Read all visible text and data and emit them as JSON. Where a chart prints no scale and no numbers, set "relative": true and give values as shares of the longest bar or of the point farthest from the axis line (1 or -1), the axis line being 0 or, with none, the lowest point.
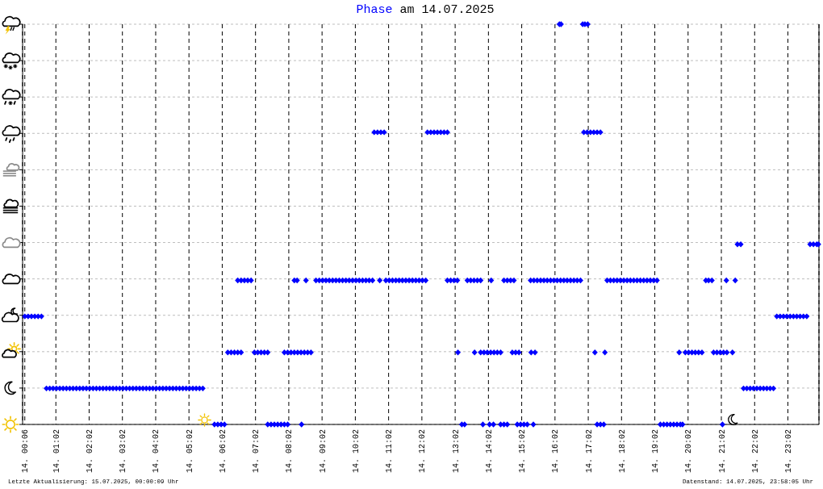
{
  "chart_data": {
    "type": "scatter",
    "title": "Phase am 14.07.2025",
    "annotations": [
      "Letzte Aktualisierung: 15.07.2025, 00:00:09 Uhr",
      "Datenstand: 14.07.2025, 23:58:05 Uhr"
    ],
    "xlim": [
      "2025-07-14T00:02",
      "2025-07-14T23:58"
    ],
    "xticks": [
      {
        "value": "2025-07-14T00:06",
        "label": "14. 00:06"
      },
      {
        "value": "2025-07-14T01:02",
        "label": "14. 01:02"
      },
      {
        "value": "2025-07-14T02:02",
        "label": "14. 02:02"
      },
      {
        "value": "2025-07-14T03:02",
        "label": "14. 03:02"
      },
      {
        "value": "2025-07-14T04:02",
        "label": "14. 04:02"
      },
      {
        "value": "2025-07-14T05:02",
        "label": "14. 05:02"
      },
      {
        "value": "2025-07-14T06:02",
        "label": "14. 06:02"
      },
      {
        "value": "2025-07-14T07:02",
        "label": "14. 07:02"
      },
      {
        "value": "2025-07-14T08:02",
        "label": "14. 08:02"
      },
      {
        "value": "2025-07-14T09:02",
        "label": "14. 09:02"
      },
      {
        "value": "2025-07-14T10:02",
        "label": "14. 10:02"
      },
      {
        "value": "2025-07-14T11:02",
        "label": "14. 11:02"
      },
      {
        "value": "2025-07-14T12:02",
        "label": "14. 12:02"
      },
      {
        "value": "2025-07-14T13:02",
        "label": "14. 13:02"
      },
      {
        "value": "2025-07-14T14:02",
        "label": "14. 14:02"
      },
      {
        "value": "2025-07-14T15:02",
        "label": "14. 15:02"
      },
      {
        "value": "2025-07-14T16:02",
        "label": "14. 16:02"
      },
      {
        "value": "2025-07-14T17:02",
        "label": "14. 17:02"
      },
      {
        "value": "2025-07-14T18:02",
        "label": "14. 18:02"
      },
      {
        "value": "2025-07-14T19:02",
        "label": "14. 19:02"
      },
      {
        "value": "2025-07-14T20:02",
        "label": "14. 20:02"
      },
      {
        "value": "2025-07-14T21:02",
        "label": "14. 21:02"
      },
      {
        "value": "2025-07-14T22:02",
        "label": "14. 22:02"
      },
      {
        "value": "2025-07-14T23:02",
        "label": "14. 23:02"
      }
    ],
    "relative": true,
    "grid": true,
    "marker": "diamond",
    "series": [
      {
        "color": "#0000ff",
        "x": [
          "2025-07-14T00:06",
          "2025-07-14T00:12",
          "2025-07-14T00:18",
          "2025-07-14T00:24",
          "2025-07-14T00:30",
          "2025-07-14T00:36",
          "2025-07-14T00:45",
          "2025-07-14T00:51",
          "2025-07-14T00:57",
          "2025-07-14T01:03",
          "2025-07-14T01:09",
          "2025-07-14T01:15",
          "2025-07-14T01:21",
          "2025-07-14T01:27",
          "2025-07-14T01:33",
          "2025-07-14T01:39",
          "2025-07-14T01:45",
          "2025-07-14T01:51",
          "2025-07-14T01:57",
          "2025-07-14T02:03",
          "2025-07-14T02:09",
          "2025-07-14T02:15",
          "2025-07-14T02:21",
          "2025-07-14T02:27",
          "2025-07-14T02:33",
          "2025-07-14T02:39",
          "2025-07-14T02:45",
          "2025-07-14T02:51",
          "2025-07-14T02:57",
          "2025-07-14T03:03",
          "2025-07-14T03:09",
          "2025-07-14T03:15",
          "2025-07-14T03:21",
          "2025-07-14T03:27",
          "2025-07-14T03:33",
          "2025-07-14T03:39",
          "2025-07-14T03:45",
          "2025-07-14T03:51",
          "2025-07-14T03:57",
          "2025-07-14T04:03",
          "2025-07-14T04:09",
          "2025-07-14T04:15",
          "2025-07-14T04:21",
          "2025-07-14T04:27",
          "2025-07-14T04:33",
          "2025-07-14T04:39",
          "2025-07-14T04:45",
          "2025-07-14T04:51",
          "2025-07-14T04:57",
          "2025-07-14T05:03",
          "2025-07-14T05:09",
          "2025-07-14T05:15",
          "2025-07-14T05:21",
          "2025-07-14T05:27",
          "2025-07-14T05:48",
          "2025-07-14T05:54",
          "2025-07-14T06:00",
          "2025-07-14T06:06",
          "2025-07-14T06:12",
          "2025-07-14T06:18",
          "2025-07-14T06:24",
          "2025-07-14T06:30",
          "2025-07-14T06:36",
          "2025-07-14T06:30",
          "2025-07-14T06:36",
          "2025-07-14T06:42",
          "2025-07-14T06:48",
          "2025-07-14T06:54",
          "2025-07-14T07:00",
          "2025-07-14T07:06",
          "2025-07-14T07:12",
          "2025-07-14T07:18",
          "2025-07-14T07:24",
          "2025-07-14T07:24",
          "2025-07-14T07:30",
          "2025-07-14T07:36",
          "2025-07-14T07:42",
          "2025-07-14T07:48",
          "2025-07-14T07:54",
          "2025-07-14T08:00",
          "2025-07-14T07:54",
          "2025-07-14T08:00",
          "2025-07-14T08:06",
          "2025-07-14T08:12",
          "2025-07-14T08:18",
          "2025-07-14T08:24",
          "2025-07-14T08:30",
          "2025-07-14T08:36",
          "2025-07-14T08:42",
          "2025-07-14T08:12",
          "2025-07-14T08:17",
          "2025-07-14T08:25",
          "2025-07-14T08:33",
          "2025-07-14T08:51",
          "2025-07-14T08:57",
          "2025-07-14T09:03",
          "2025-07-14T09:09",
          "2025-07-14T09:15",
          "2025-07-14T09:21",
          "2025-07-14T09:27",
          "2025-07-14T09:33",
          "2025-07-14T09:39",
          "2025-07-14T09:45",
          "2025-07-14T09:51",
          "2025-07-14T09:57",
          "2025-07-14T10:03",
          "2025-07-14T10:09",
          "2025-07-14T10:15",
          "2025-07-14T10:21",
          "2025-07-14T10:27",
          "2025-07-14T10:33",
          "2025-07-14T10:36",
          "2025-07-14T10:42",
          "2025-07-14T10:48",
          "2025-07-14T10:54",
          "2025-07-14T10:46",
          "2025-07-14T10:57",
          "2025-07-14T11:03",
          "2025-07-14T11:09",
          "2025-07-14T11:15",
          "2025-07-14T11:21",
          "2025-07-14T11:27",
          "2025-07-14T11:33",
          "2025-07-14T11:39",
          "2025-07-14T11:45",
          "2025-07-14T11:51",
          "2025-07-14T11:57",
          "2025-07-14T12:03",
          "2025-07-14T12:09",
          "2025-07-14T12:12",
          "2025-07-14T12:18",
          "2025-07-14T12:24",
          "2025-07-14T12:30",
          "2025-07-14T12:36",
          "2025-07-14T12:42",
          "2025-07-14T12:48",
          "2025-07-14T12:48",
          "2025-07-14T12:54",
          "2025-07-14T13:00",
          "2025-07-14T13:06",
          "2025-07-14T13:07",
          "2025-07-14T13:14",
          "2025-07-14T13:19",
          "2025-07-14T13:24",
          "2025-07-14T13:30",
          "2025-07-14T13:36",
          "2025-07-14T13:42",
          "2025-07-14T13:48",
          "2025-07-14T13:37",
          "2025-07-14T13:48",
          "2025-07-14T13:54",
          "2025-07-14T14:00",
          "2025-07-14T14:06",
          "2025-07-14T14:12",
          "2025-07-14T14:18",
          "2025-07-14T14:24",
          "2025-07-14T13:52",
          "2025-07-14T14:04",
          "2025-07-14T14:11",
          "2025-07-14T14:07",
          "2025-07-14T14:24",
          "2025-07-14T14:30",
          "2025-07-14T14:36",
          "2025-07-14T14:30",
          "2025-07-14T14:36",
          "2025-07-14T14:42",
          "2025-07-14T14:48",
          "2025-07-14T14:45",
          "2025-07-14T14:51",
          "2025-07-14T14:57",
          "2025-07-14T14:54",
          "2025-07-14T15:00",
          "2025-07-14T15:06",
          "2025-07-14T15:12",
          "2025-07-14T15:18",
          "2025-07-14T15:24",
          "2025-07-14T15:30",
          "2025-07-14T15:36",
          "2025-07-14T15:42",
          "2025-07-14T15:48",
          "2025-07-14T15:54",
          "2025-07-14T16:00",
          "2025-07-14T16:06",
          "2025-07-14T16:12",
          "2025-07-14T16:18",
          "2025-07-14T16:24",
          "2025-07-14T16:30",
          "2025-07-14T16:36",
          "2025-07-14T16:42",
          "2025-07-14T16:48",
          "2025-07-14T15:19",
          "2025-07-14T15:26",
          "2025-07-14T15:23",
          "2025-07-14T16:10",
          "2025-07-14T16:13",
          "2025-07-14T16:52",
          "2025-07-14T16:56",
          "2025-07-14T17:01",
          "2025-07-14T16:54",
          "2025-07-14T17:00",
          "2025-07-14T17:06",
          "2025-07-14T17:12",
          "2025-07-14T17:18",
          "2025-07-14T17:24",
          "2025-07-14T17:14",
          "2025-07-14T17:18",
          "2025-07-14T17:24",
          "2025-07-14T17:30",
          "2025-07-14T17:32",
          "2025-07-14T17:36",
          "2025-07-14T17:42",
          "2025-07-14T17:48",
          "2025-07-14T17:54",
          "2025-07-14T18:00",
          "2025-07-14T18:06",
          "2025-07-14T18:12",
          "2025-07-14T18:18",
          "2025-07-14T18:24",
          "2025-07-14T18:30",
          "2025-07-14T18:36",
          "2025-07-14T18:42",
          "2025-07-14T18:48",
          "2025-07-14T18:54",
          "2025-07-14T19:00",
          "2025-07-14T19:06",
          "2025-07-14T19:12",
          "2025-07-14T19:18",
          "2025-07-14T19:24",
          "2025-07-14T19:30",
          "2025-07-14T19:36",
          "2025-07-14T19:42",
          "2025-07-14T19:48",
          "2025-07-14T19:52",
          "2025-07-14T19:46",
          "2025-07-14T19:57",
          "2025-07-14T20:03",
          "2025-07-14T20:09",
          "2025-07-14T20:15",
          "2025-07-14T20:21",
          "2025-07-14T20:27",
          "2025-07-14T20:34",
          "2025-07-14T20:39",
          "2025-07-14T20:45",
          "2025-07-14T20:48",
          "2025-07-14T20:54",
          "2025-07-14T21:00",
          "2025-07-14T21:06",
          "2025-07-14T21:12",
          "2025-07-14T21:04",
          "2025-07-14T21:11",
          "2025-07-14T21:27",
          "2025-07-14T21:22",
          "2025-07-14T21:31",
          "2025-07-14T21:37",
          "2025-07-14T21:42",
          "2025-07-14T21:48",
          "2025-07-14T21:54",
          "2025-07-14T22:00",
          "2025-07-14T22:06",
          "2025-07-14T22:12",
          "2025-07-14T22:18",
          "2025-07-14T22:24",
          "2025-07-14T22:30",
          "2025-07-14T22:36",
          "2025-07-14T22:42",
          "2025-07-14T22:48",
          "2025-07-14T22:54",
          "2025-07-14T23:00",
          "2025-07-14T23:06",
          "2025-07-14T23:12",
          "2025-07-14T23:18",
          "2025-07-14T23:24",
          "2025-07-14T23:30",
          "2025-07-14T23:36",
          "2025-07-14T23:42",
          "2025-07-14T23:48",
          "2025-07-14T23:54",
          "2025-07-14T23:57"
        ],
        "values": [
          0.27,
          0.27,
          0.27,
          0.27,
          0.27,
          0.27,
          0.09,
          0.09,
          0.09,
          0.09,
          0.09,
          0.09,
          0.09,
          0.09,
          0.09,
          0.09,
          0.09,
          0.09,
          0.09,
          0.09,
          0.09,
          0.09,
          0.09,
          0.09,
          0.09,
          0.09,
          0.09,
          0.09,
          0.09,
          0.09,
          0.09,
          0.09,
          0.09,
          0.09,
          0.09,
          0.09,
          0.09,
          0.09,
          0.09,
          0.09,
          0.09,
          0.09,
          0.09,
          0.09,
          0.09,
          0.09,
          0.09,
          0.09,
          0.09,
          0.09,
          0.09,
          0.09,
          0.09,
          0.09,
          0,
          0,
          0,
          0,
          0.18,
          0.18,
          0.18,
          0.18,
          0.18,
          0.36,
          0.36,
          0.36,
          0.36,
          0.36,
          0.18,
          0.18,
          0.18,
          0.18,
          0.18,
          0,
          0,
          0,
          0,
          0,
          0,
          0,
          0.18,
          0.18,
          0.18,
          0.18,
          0.18,
          0.18,
          0.18,
          0.18,
          0.18,
          0.36,
          0.36,
          0,
          0.36,
          0.36,
          0.36,
          0.36,
          0.36,
          0.36,
          0.36,
          0.36,
          0.36,
          0.36,
          0.36,
          0.36,
          0.36,
          0.36,
          0.36,
          0.36,
          0.36,
          0.36,
          0.36,
          0.73,
          0.73,
          0.73,
          0.73,
          0.36,
          0.36,
          0.36,
          0.36,
          0.36,
          0.36,
          0.36,
          0.36,
          0.36,
          0.36,
          0.36,
          0.36,
          0.36,
          0.36,
          0.73,
          0.73,
          0.73,
          0.73,
          0.73,
          0.73,
          0.73,
          0.36,
          0.36,
          0.36,
          0.36,
          0.18,
          0,
          0,
          0.36,
          0.36,
          0.36,
          0.36,
          0.36,
          0.18,
          0.18,
          0.18,
          0.18,
          0.18,
          0.18,
          0.18,
          0.18,
          0,
          0,
          0,
          0.36,
          0,
          0,
          0,
          0.36,
          0.36,
          0.36,
          0.36,
          0.18,
          0.18,
          0.18,
          0,
          0,
          0,
          0,
          0.36,
          0.36,
          0.36,
          0.36,
          0.36,
          0.36,
          0.36,
          0.36,
          0.36,
          0.36,
          0.36,
          0.36,
          0.36,
          0.36,
          0.36,
          0.36,
          0.18,
          0.18,
          0,
          1,
          1,
          1,
          1,
          1,
          0.73,
          0.73,
          0.73,
          0.73,
          0.73,
          0.73,
          0.18,
          0,
          0,
          0,
          0.18,
          0.36,
          0.36,
          0.36,
          0.36,
          0.36,
          0.36,
          0.36,
          0.36,
          0.36,
          0.36,
          0.36,
          0.36,
          0.36,
          0.36,
          0.36,
          0.36,
          0,
          0,
          0,
          0,
          0,
          0,
          0,
          0,
          0.18,
          0.18,
          0.18,
          0.18,
          0.18,
          0.18,
          0.18,
          0.36,
          0.36,
          0.36,
          0.18,
          0.18,
          0.18,
          0.18,
          0.18,
          0,
          0.36,
          0.36,
          0.18,
          0.45,
          0.45,
          0.09,
          0.09,
          0.09,
          0.09,
          0.09,
          0.09,
          0.09,
          0.09,
          0.09,
          0.09,
          0.27,
          0.27,
          0.27,
          0.27,
          0.27,
          0.27,
          0.27,
          0.27,
          0.27,
          0.27,
          0.45,
          0.45,
          0.45,
          0.45
        ]
      }
    ]
  }
}
